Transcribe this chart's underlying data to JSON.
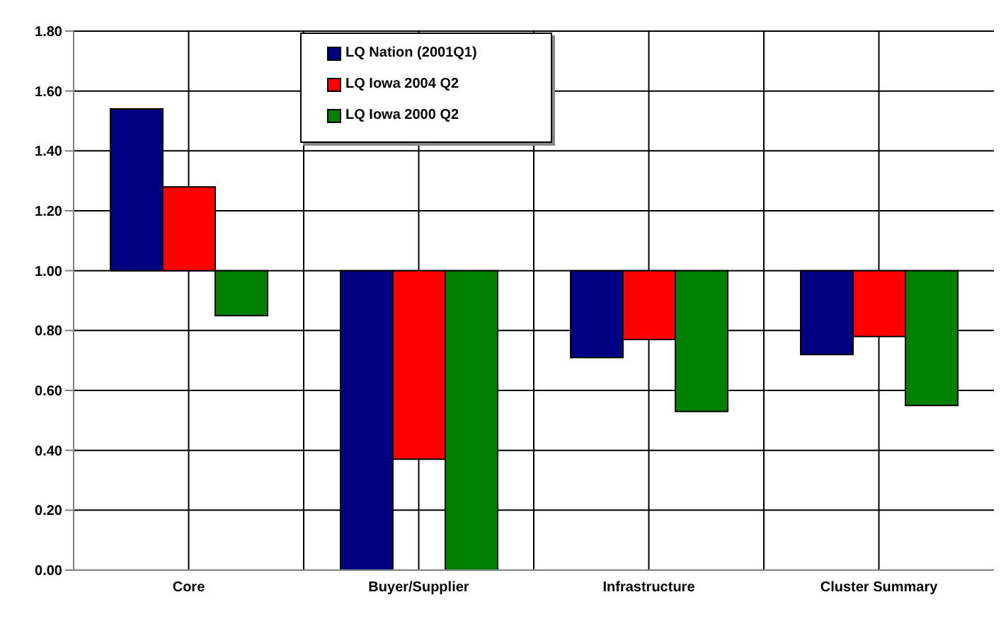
{
  "chart_data": {
    "type": "bar",
    "categories": [
      "Core",
      "Buyer/Supplier",
      "Infrastructure",
      "Cluster Summary"
    ],
    "series": [
      {
        "name": "LQ Nation (2001Q1)",
        "color": "#000080",
        "base": [
          1,
          1,
          1,
          1
        ],
        "values": [
          0.54,
          -1.0,
          -0.29,
          -0.28
        ]
      },
      {
        "name": "LQ Iowa 2004 Q2",
        "color": "#ff0000",
        "base": [
          1,
          1,
          1,
          1
        ],
        "values": [
          0.28,
          -0.63,
          -0.23,
          -0.22
        ]
      },
      {
        "name": "LQ Iowa 2000 Q2",
        "color": "#008000",
        "base": [
          1,
          1,
          1,
          1
        ],
        "values": [
          -0.15,
          -1.0,
          -0.47,
          -0.45
        ]
      }
    ],
    "ylim": [
      0,
      1.8
    ],
    "yticks": [
      {
        "value": 0,
        "label": "0.00"
      },
      {
        "value": 0.2,
        "label": "0.20"
      },
      {
        "value": 0.4,
        "label": "0.40"
      },
      {
        "value": 0.6,
        "label": "0.60"
      },
      {
        "value": 0.8,
        "label": "0.80"
      },
      {
        "value": 1,
        "label": "1.00"
      },
      {
        "value": 1.2,
        "label": "1.20"
      },
      {
        "value": 1.4,
        "label": "1.40"
      },
      {
        "value": 1.6,
        "label": "1.60"
      },
      {
        "value": 1.8,
        "label": "1.80"
      }
    ],
    "grid": true,
    "legend": "top"
  }
}
